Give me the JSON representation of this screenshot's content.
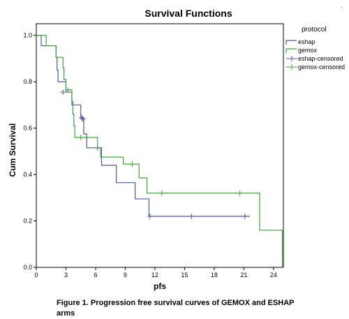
{
  "caption": "Figure 1. Progression free survival curves of GEMOX and ESHAP arms",
  "corner_mark": ".",
  "chart_data": {
    "type": "line",
    "title": "Survival Functions",
    "xlabel": "pfs",
    "ylabel": "Cum Survival",
    "xlim": [
      0,
      25
    ],
    "ylim": [
      0,
      1.05
    ],
    "x_ticks": [
      0,
      3,
      6,
      9,
      12,
      15,
      18,
      21,
      24
    ],
    "y_ticks": [
      0.0,
      0.2,
      0.4,
      0.6,
      0.8,
      1.0
    ],
    "y_tick_labels": [
      "0.0",
      "0.2",
      "0.4",
      "0.6",
      "0.8",
      "1.0"
    ],
    "step": true,
    "grid": false,
    "legend_title": "protocol",
    "legend_position": "right",
    "legend": [
      {
        "label": "eshap",
        "kind": "line",
        "color": "#4a57a8"
      },
      {
        "label": "gemox",
        "kind": "line",
        "color": "#3aa83a"
      },
      {
        "label": "eshap-censored",
        "kind": "censor",
        "color": "#4a57a8"
      },
      {
        "label": "gemox-censored",
        "kind": "censor",
        "color": "#3aa83a"
      }
    ],
    "series": [
      {
        "name": "eshap",
        "color": "#4a57a8",
        "steps": [
          [
            0,
            1.0
          ],
          [
            0.5,
            0.955
          ],
          [
            2.0,
            0.905
          ],
          [
            2.1,
            0.85
          ],
          [
            2.2,
            0.8
          ],
          [
            3.0,
            0.755
          ],
          [
            3.6,
            0.7
          ],
          [
            4.5,
            0.645
          ],
          [
            4.8,
            0.575
          ],
          [
            5.1,
            0.515
          ],
          [
            6.6,
            0.44
          ],
          [
            8.1,
            0.365
          ],
          [
            10.0,
            0.295
          ],
          [
            11.4,
            0.22
          ],
          [
            21.6,
            0.22
          ]
        ],
        "censored": [
          [
            2.7,
            0.755
          ],
          [
            4.6,
            0.645
          ],
          [
            4.7,
            0.64
          ],
          [
            6.2,
            0.515
          ],
          [
            11.5,
            0.22
          ],
          [
            15.7,
            0.22
          ],
          [
            21.1,
            0.22
          ]
        ]
      },
      {
        "name": "gemox",
        "color": "#3aa83a",
        "steps": [
          [
            0,
            1.0
          ],
          [
            1.0,
            0.955
          ],
          [
            2.0,
            0.905
          ],
          [
            2.7,
            0.86
          ],
          [
            2.8,
            0.81
          ],
          [
            3.0,
            0.765
          ],
          [
            3.6,
            0.715
          ],
          [
            3.7,
            0.66
          ],
          [
            3.8,
            0.61
          ],
          [
            3.9,
            0.56
          ],
          [
            6.2,
            0.515
          ],
          [
            6.5,
            0.475
          ],
          [
            8.8,
            0.445
          ],
          [
            10.4,
            0.385
          ],
          [
            11.2,
            0.32
          ],
          [
            22.6,
            0.16
          ],
          [
            24.9,
            0.0
          ]
        ],
        "censored": [
          [
            3.2,
            0.765
          ],
          [
            4.5,
            0.56
          ],
          [
            9.7,
            0.445
          ],
          [
            12.7,
            0.32
          ],
          [
            20.6,
            0.32
          ]
        ]
      }
    ]
  }
}
